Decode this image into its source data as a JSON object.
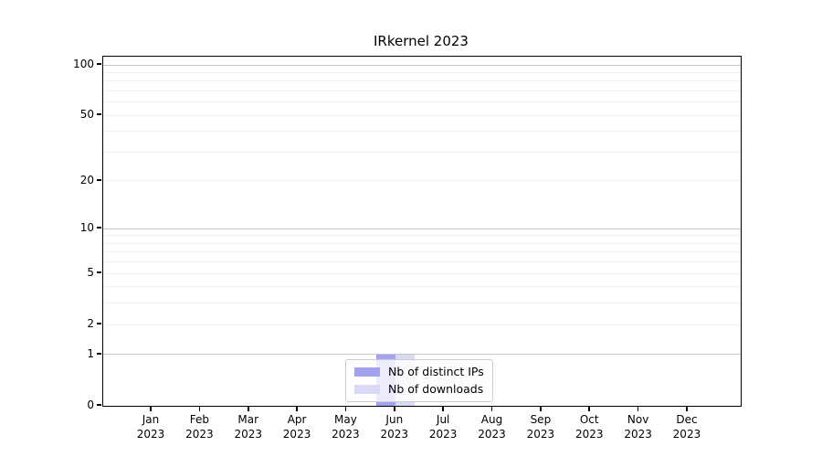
{
  "chart_data": {
    "type": "bar",
    "title": "IRkernel 2023",
    "categories": [
      "Jan 2023",
      "Feb 2023",
      "Mar 2023",
      "Apr 2023",
      "May 2023",
      "Jun 2023",
      "Jul 2023",
      "Aug 2023",
      "Sep 2023",
      "Oct 2023",
      "Nov 2023",
      "Dec 2023"
    ],
    "series": [
      {
        "name": "Nb of distinct IPs",
        "color": "#a2a2ee",
        "values": [
          0,
          0,
          0,
          0,
          0,
          1,
          0,
          0,
          0,
          0,
          0,
          0
        ]
      },
      {
        "name": "Nb of downloads",
        "color": "#dadaf6",
        "values": [
          0,
          0,
          0,
          0,
          0,
          1,
          0,
          0,
          0,
          0,
          0,
          0
        ]
      }
    ],
    "xlabel": "",
    "ylabel": "",
    "y_scale": "log1p",
    "ylim": [
      0,
      110
    ],
    "y_ticks": [
      0,
      1,
      2,
      5,
      10,
      20,
      50,
      100
    ],
    "grid": {
      "on": true,
      "dark_lines": [
        1,
        10,
        100
      ],
      "light_lines": [
        2,
        3,
        4,
        5,
        6,
        7,
        8,
        9,
        20,
        30,
        40,
        50,
        60,
        70,
        80,
        90
      ],
      "dark_color": "#c6c6c6",
      "light_color": "#efefef"
    },
    "legend": {
      "position": "lower center",
      "entries": [
        "Nb of distinct IPs",
        "Nb of downloads"
      ]
    }
  }
}
